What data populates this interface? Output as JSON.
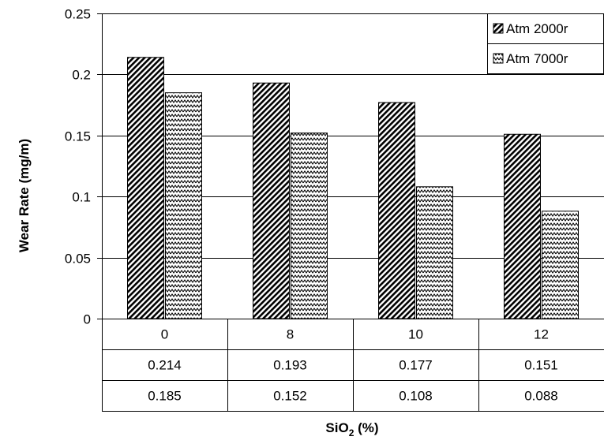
{
  "chart_data": {
    "type": "bar",
    "title": "",
    "xlabel": "SiO",
    "xlabel_subscript": "2",
    "xlabel_suffix": " (%)",
    "ylabel": "Wear Rate (mg/m)",
    "ylim": [
      0,
      0.25
    ],
    "yticks": [
      0,
      0.05,
      0.1,
      0.15,
      0.2,
      0.25
    ],
    "ytick_labels": [
      "0",
      "0.05",
      "0.1",
      "0.15",
      "0.2",
      "0.25"
    ],
    "categories": [
      "0",
      "8",
      "10",
      "12"
    ],
    "series": [
      {
        "name": "Atm 2000r",
        "pattern": "diagonal-hatch",
        "values": [
          0.214,
          0.193,
          0.177,
          0.151
        ],
        "value_labels": [
          "0.214",
          "0.193",
          "0.177",
          "0.151"
        ]
      },
      {
        "name": "Atm 7000r",
        "pattern": "zigzag",
        "values": [
          0.185,
          0.152,
          0.108,
          0.088
        ],
        "value_labels": [
          "0.185",
          "0.152",
          "0.108",
          "0.088"
        ]
      }
    ],
    "grid": "horizontal",
    "legend_position": "top-right",
    "data_table": true,
    "colors": {
      "background": "#ffffff",
      "lines": "#000000"
    }
  }
}
